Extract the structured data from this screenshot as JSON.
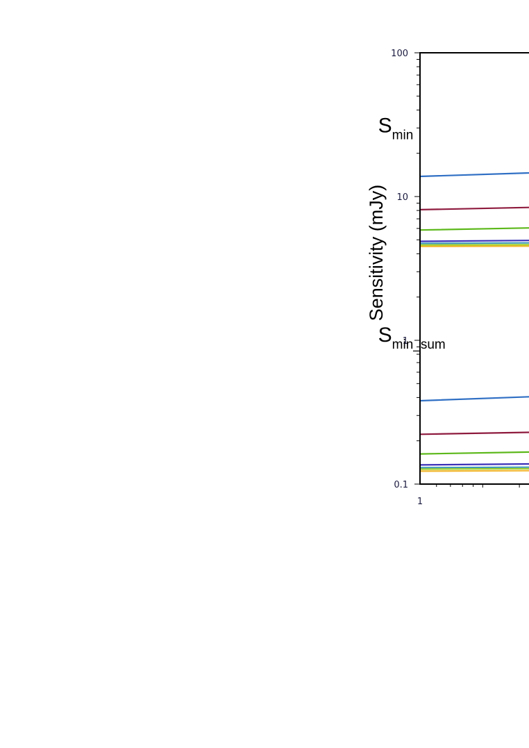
{
  "chart_data": {
    "type": "line",
    "ylabel": "Sensitivity (mJy)",
    "yscale": "log",
    "ylim": [
      0.1,
      100
    ],
    "yticks": [
      "100",
      "10",
      "1",
      "0.1"
    ],
    "xticks": [
      "1"
    ],
    "annotations": [
      {
        "main": "S",
        "sub": "min",
        "x": 1.9,
        "y": 28
      },
      {
        "main": "S",
        "sub": "min_sum",
        "x": 1.9,
        "y": 0.98
      }
    ],
    "series": [
      {
        "group": "S_min",
        "color": "#2f6fc4",
        "y_start": 13.8,
        "y_end": 14.6
      },
      {
        "group": "S_min",
        "color": "#8e1a3e",
        "y_start": 8.1,
        "y_end": 8.4
      },
      {
        "group": "S_min",
        "color": "#5cb81a",
        "y_start": 5.85,
        "y_end": 6.05
      },
      {
        "group": "S_min",
        "color": "#3a2fb8",
        "y_start": 4.88,
        "y_end": 4.95
      },
      {
        "group": "S_min",
        "color": "#3f9ab8",
        "y_start": 4.72,
        "y_end": 4.76
      },
      {
        "group": "S_min",
        "color": "#9fd02b",
        "y_start": 4.6,
        "y_end": 4.62
      },
      {
        "group": "S_min",
        "color": "#f2b72e",
        "y_start": 4.5,
        "y_end": 4.52
      },
      {
        "group": "S_min_sum",
        "color": "#2f6fc4",
        "y_start": 0.38,
        "y_end": 0.405
      },
      {
        "group": "S_min_sum",
        "color": "#8e1a3e",
        "y_start": 0.222,
        "y_end": 0.229
      },
      {
        "group": "S_min_sum",
        "color": "#5cb81a",
        "y_start": 0.162,
        "y_end": 0.167
      },
      {
        "group": "S_min_sum",
        "color": "#3a2fb8",
        "y_start": 0.136,
        "y_end": 0.138
      },
      {
        "group": "S_min_sum",
        "color": "#3f9ab8",
        "y_start": 0.13,
        "y_end": 0.131
      },
      {
        "group": "S_min_sum",
        "color": "#9fd02b",
        "y_start": 0.127,
        "y_end": 0.128
      },
      {
        "group": "S_min_sum",
        "color": "#f2b72e",
        "y_start": 0.123,
        "y_end": 0.124
      }
    ]
  }
}
